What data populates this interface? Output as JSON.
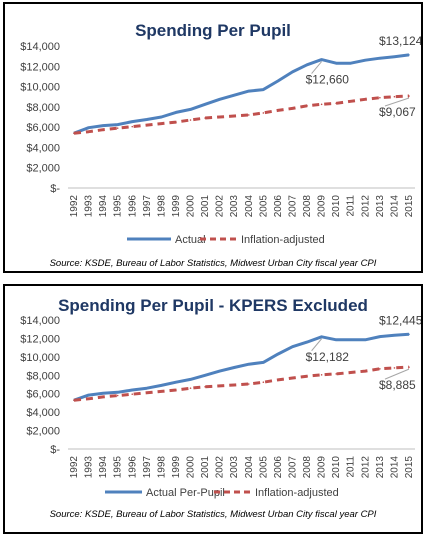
{
  "colors": {
    "actual": "#4f81bd",
    "inflation": "#c0504d",
    "title": "#1f3864"
  },
  "chart_data": [
    {
      "type": "line",
      "title": "Spending Per Pupil",
      "x": [
        "1992",
        "1993",
        "1994",
        "1995",
        "1996",
        "1997",
        "1998",
        "1999",
        "2000",
        "2001",
        "2002",
        "2003",
        "2004",
        "2005",
        "2006",
        "2007",
        "2008",
        "2009",
        "2010",
        "2011",
        "2012",
        "2013",
        "2014",
        "2015"
      ],
      "ylim": [
        0,
        14000
      ],
      "yticks": [
        "$-",
        "$2,000",
        "$4,000",
        "$6,000",
        "$8,000",
        "$10,000",
        "$12,000",
        "$14,000"
      ],
      "series": [
        {
          "name": "Actual",
          "style": "solid",
          "values": [
            5400,
            5950,
            6150,
            6250,
            6550,
            6750,
            7000,
            7450,
            7750,
            8250,
            8750,
            9150,
            9550,
            9700,
            10550,
            11450,
            12150,
            12660,
            12300,
            12300,
            12600,
            12800,
            12950,
            13124
          ]
        },
        {
          "name": "Inflation-adjusted",
          "style": "dashed",
          "values": [
            5400,
            5550,
            5750,
            5900,
            6050,
            6200,
            6350,
            6500,
            6700,
            6900,
            7000,
            7100,
            7200,
            7400,
            7650,
            7850,
            8100,
            8250,
            8350,
            8550,
            8750,
            8900,
            9000,
            9067
          ]
        }
      ],
      "annotations": [
        {
          "text": "$13,124",
          "series": 0,
          "index": 23
        },
        {
          "text": "$12,660",
          "series": 0,
          "index": 17
        },
        {
          "text": "$9,067",
          "series": 1,
          "index": 23
        }
      ],
      "legend": "bottom",
      "source": "Source: KSDE, Bureau of Labor Statistics, Midwest Urban City fiscal year CPI",
      "grid": false
    },
    {
      "type": "line",
      "title": "Spending Per Pupil - KPERS Excluded",
      "x": [
        "1992",
        "1993",
        "1994",
        "1995",
        "1996",
        "1997",
        "1998",
        "1999",
        "2000",
        "2001",
        "2002",
        "2003",
        "2004",
        "2005",
        "2006",
        "2007",
        "2008",
        "2009",
        "2010",
        "2011",
        "2012",
        "2013",
        "2014",
        "2015"
      ],
      "ylim": [
        0,
        14000
      ],
      "yticks": [
        "$-",
        "$2,000",
        "$4,000",
        "$6,000",
        "$8,000",
        "$10,000",
        "$12,000",
        "$14,000"
      ],
      "series": [
        {
          "name": "Actual Per-Pupil",
          "style": "solid",
          "values": [
            5300,
            5850,
            6050,
            6150,
            6400,
            6600,
            6900,
            7250,
            7550,
            8000,
            8450,
            8850,
            9200,
            9400,
            10300,
            11100,
            11600,
            12182,
            11850,
            11850,
            11850,
            12200,
            12350,
            12445
          ]
        },
        {
          "name": "Inflation-adjusted",
          "style": "dashed",
          "values": [
            5300,
            5450,
            5650,
            5800,
            5950,
            6100,
            6250,
            6400,
            6600,
            6750,
            6850,
            6950,
            7050,
            7250,
            7500,
            7700,
            7900,
            8050,
            8150,
            8300,
            8450,
            8700,
            8800,
            8885
          ]
        }
      ],
      "annotations": [
        {
          "text": "$12,445",
          "series": 0,
          "index": 23
        },
        {
          "text": "$12,182",
          "series": 0,
          "index": 17
        },
        {
          "text": "$8,885",
          "series": 1,
          "index": 23
        }
      ],
      "legend": "bottom",
      "source": "Source: KSDE, Bureau of Labor Statistics, Midwest Urban City fiscal year CPI",
      "grid": false
    }
  ]
}
